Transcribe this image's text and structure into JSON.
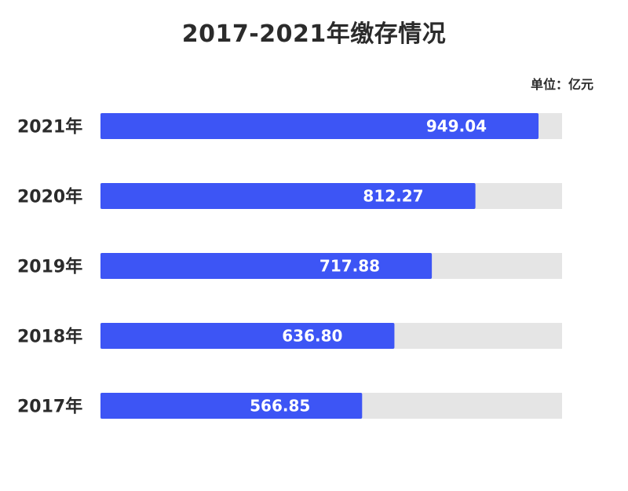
{
  "chart_data": {
    "type": "bar",
    "orientation": "horizontal",
    "title": "2017-2021年缴存情况",
    "unit": "单位：亿元",
    "categories": [
      "2021年",
      "2020年",
      "2019年",
      "2018年",
      "2017年"
    ],
    "values": [
      949.04,
      812.27,
      717.88,
      636.8,
      566.85
    ],
    "value_labels": [
      "949.04",
      "812.27",
      "717.88",
      "636.80",
      "566.85"
    ],
    "xlim": [
      0,
      1000
    ],
    "grid": false,
    "bar_color": "#3d55f5",
    "track_color": "#e5e5e5"
  }
}
